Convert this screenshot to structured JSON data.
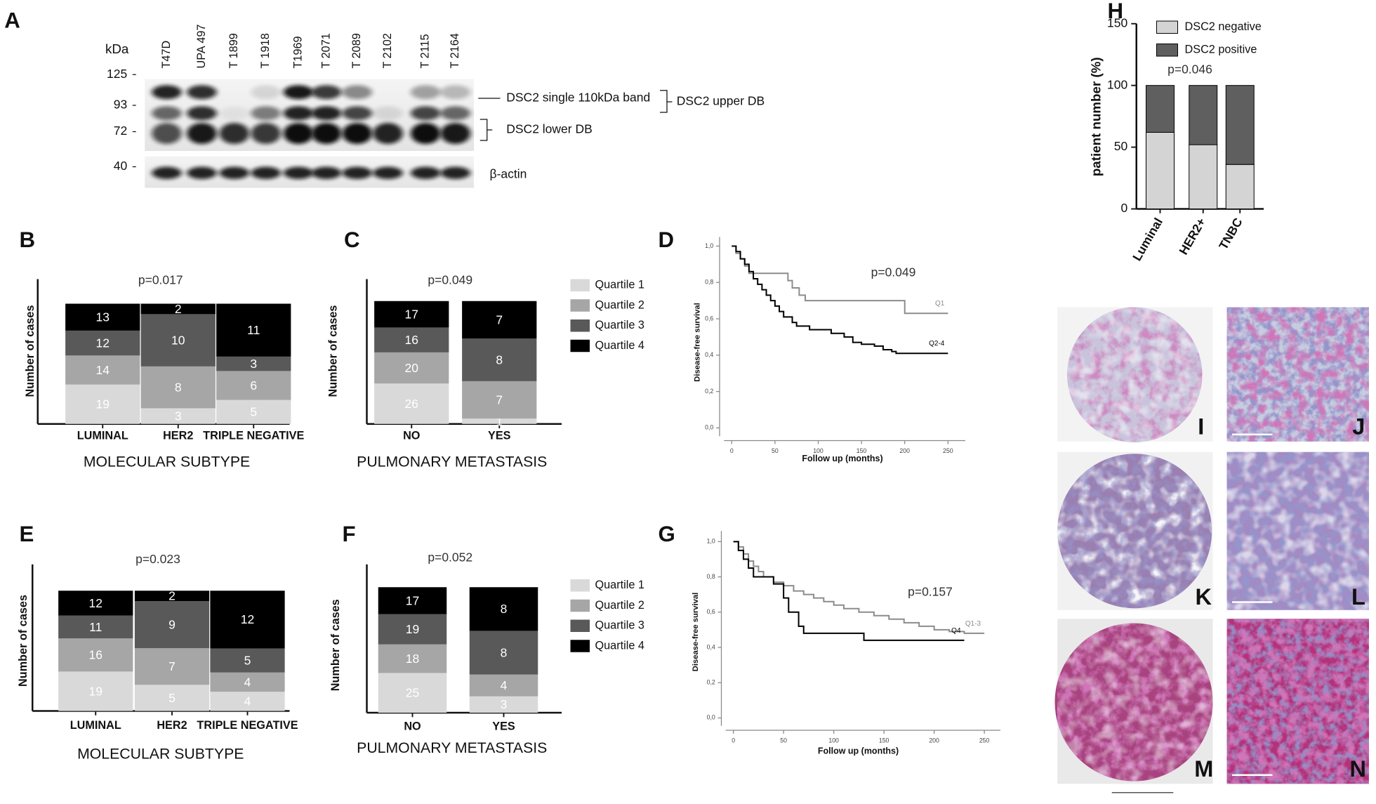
{
  "blot": {
    "panel": "A",
    "unit": "kDa",
    "markers": [
      125,
      93,
      72,
      40
    ],
    "lanes": [
      "T47D",
      "UPA 497",
      "T 1899",
      "T 1918",
      "T1969",
      "T 2071",
      "T 2089",
      "T 2102",
      "T 2115",
      "T 2164"
    ],
    "annotations": [
      "DSC2 single 110kDa band",
      "DSC2 upper DB",
      "DSC2 lower DB",
      "β-actin"
    ]
  },
  "chart_data": [
    {
      "panel": "B",
      "type": "bar",
      "stacking": "percent",
      "data_labels": true,
      "title": "p=0.017",
      "x_label": "MOLECULAR SUBTYPE",
      "y_label": "Number of cases",
      "categories": [
        "LUMINAL",
        "HER2",
        "TRIPLE NEGATIVE"
      ],
      "series": [
        {
          "color": "#d9d9d9",
          "values": [
            19,
            3,
            5
          ]
        },
        {
          "color": "#a6a6a6",
          "values": [
            14,
            8,
            6
          ]
        },
        {
          "color": "#595959",
          "values": [
            12,
            10,
            3
          ]
        },
        {
          "color": "#000000",
          "values": [
            13,
            2,
            11
          ]
        }
      ]
    },
    {
      "panel": "C",
      "type": "bar",
      "stacking": "percent",
      "data_labels": true,
      "title": "p=0.049",
      "x_label": "PULMONARY METASTASIS",
      "y_label": "Number of cases",
      "legend": "right",
      "categories": [
        "NO",
        "YES"
      ],
      "series": [
        {
          "name": "Quartile 1",
          "color": "#d9d9d9",
          "values": [
            26,
            1
          ]
        },
        {
          "name": "Quartile 2",
          "color": "#a6a6a6",
          "values": [
            20,
            7
          ]
        },
        {
          "name": "Quartile 3",
          "color": "#595959",
          "values": [
            16,
            8
          ]
        },
        {
          "name": "Quartile 4",
          "color": "#000000",
          "values": [
            17,
            7
          ]
        }
      ]
    },
    {
      "panel": "D",
      "type": "line",
      "drawstyle": "steps-post",
      "title": "p=0.049",
      "x_label": "Follow up (months)",
      "y_label": "Disease-free survival",
      "xlim": [
        -14,
        270
      ],
      "xticks": [
        0,
        50,
        100,
        150,
        200,
        250
      ],
      "ylim": [
        -0.07,
        1.05
      ],
      "yticks": [
        {
          "value": 0,
          "label": "0,0"
        },
        {
          "value": 0.2,
          "label": "0,2"
        },
        {
          "value": 0.4,
          "label": "0,4"
        },
        {
          "value": 0.6,
          "label": "0,6"
        },
        {
          "value": 0.8,
          "label": "0,8"
        },
        {
          "value": 1,
          "label": "1,0"
        }
      ],
      "series": [
        {
          "name": "Q1",
          "color": "#8c8c8c",
          "x": [
            0,
            5,
            10,
            15,
            20,
            65,
            70,
            78,
            85,
            200,
            250
          ],
          "values": [
            1.0,
            0.96,
            0.93,
            0.89,
            0.85,
            0.81,
            0.77,
            0.73,
            0.7,
            0.63,
            0.63
          ]
        },
        {
          "name": "Q2-4",
          "color": "#000000",
          "x": [
            0,
            5,
            10,
            15,
            20,
            25,
            30,
            35,
            40,
            45,
            50,
            55,
            60,
            70,
            75,
            90,
            115,
            130,
            140,
            150,
            165,
            175,
            185,
            190,
            250
          ],
          "values": [
            1.0,
            0.97,
            0.93,
            0.9,
            0.86,
            0.82,
            0.79,
            0.76,
            0.73,
            0.7,
            0.67,
            0.64,
            0.61,
            0.58,
            0.56,
            0.54,
            0.52,
            0.5,
            0.47,
            0.46,
            0.45,
            0.43,
            0.42,
            0.41,
            0.41
          ]
        }
      ]
    },
    {
      "panel": "E",
      "type": "bar",
      "stacking": "percent",
      "data_labels": true,
      "title": "p=0.023",
      "x_label": "MOLECULAR SUBTYPE",
      "y_label": "Number of cases",
      "categories": [
        "LUMINAL",
        "HER2",
        "TRIPLE NEGATIVE"
      ],
      "series": [
        {
          "color": "#d9d9d9",
          "values": [
            19,
            5,
            4
          ]
        },
        {
          "color": "#a6a6a6",
          "values": [
            16,
            7,
            4
          ]
        },
        {
          "color": "#595959",
          "values": [
            11,
            9,
            5
          ]
        },
        {
          "color": "#000000",
          "values": [
            12,
            2,
            12
          ]
        }
      ]
    },
    {
      "panel": "F",
      "type": "bar",
      "stacking": "percent",
      "data_labels": true,
      "title": "p=0.052",
      "x_label": "PULMONARY METASTASIS",
      "y_label": "Number of cases",
      "legend": "right",
      "categories": [
        "NO",
        "YES"
      ],
      "series": [
        {
          "name": "Quartile 1",
          "color": "#d9d9d9",
          "values": [
            25,
            3
          ]
        },
        {
          "name": "Quartile 2",
          "color": "#a6a6a6",
          "values": [
            18,
            4
          ]
        },
        {
          "name": "Quartile 3",
          "color": "#595959",
          "values": [
            19,
            8
          ]
        },
        {
          "name": "Quartile 4",
          "color": "#000000",
          "values": [
            17,
            8
          ]
        }
      ]
    },
    {
      "panel": "G",
      "type": "line",
      "drawstyle": "steps-post",
      "title": "p=0.157",
      "x_label": "Follow up (months)",
      "y_label": "Disease-free survival",
      "xlim": [
        -12,
        266
      ],
      "xticks": [
        0,
        50,
        100,
        150,
        200,
        250
      ],
      "ylim": [
        -0.07,
        1.06
      ],
      "yticks": [
        {
          "value": 0,
          "label": "0,0"
        },
        {
          "value": 0.2,
          "label": "0,2"
        },
        {
          "value": 0.4,
          "label": "0,4"
        },
        {
          "value": 0.6,
          "label": "0,6"
        },
        {
          "value": 0.8,
          "label": "0,8"
        },
        {
          "value": 1,
          "label": "1,0"
        }
      ],
      "series": [
        {
          "name": "Q1-3",
          "color": "#8c8c8c",
          "x": [
            0,
            5,
            10,
            15,
            20,
            25,
            30,
            40,
            50,
            60,
            70,
            80,
            90,
            100,
            110,
            125,
            140,
            155,
            170,
            185,
            200,
            215,
            230,
            250
          ],
          "values": [
            1.0,
            0.97,
            0.93,
            0.89,
            0.86,
            0.83,
            0.8,
            0.77,
            0.75,
            0.72,
            0.7,
            0.68,
            0.66,
            0.64,
            0.62,
            0.6,
            0.58,
            0.56,
            0.54,
            0.52,
            0.5,
            0.49,
            0.48,
            0.48
          ]
        },
        {
          "name": "Q4",
          "color": "#000000",
          "x": [
            0,
            5,
            10,
            15,
            20,
            40,
            50,
            55,
            65,
            70,
            130,
            230
          ],
          "values": [
            1.0,
            0.95,
            0.9,
            0.85,
            0.8,
            0.76,
            0.68,
            0.6,
            0.52,
            0.48,
            0.44,
            0.44
          ]
        }
      ]
    },
    {
      "panel": "H",
      "type": "bar",
      "stacking": "normal",
      "annotation": "p=0.046",
      "y_label": "patient number (%)",
      "legend": "upper left",
      "edgecolor": "#000000",
      "xtick_rotation": -60,
      "ylim": [
        0,
        150
      ],
      "yticks": [
        0,
        50,
        100,
        150
      ],
      "categories": [
        "Luminal",
        "HER2+",
        "TNBC"
      ],
      "series": [
        {
          "name": "DSC2 negative",
          "color": "#d4d4d4",
          "values": [
            62,
            52,
            36
          ]
        },
        {
          "name": "DSC2 positive",
          "color": "#5f5f5f",
          "values": [
            38,
            48,
            64
          ]
        }
      ]
    }
  ],
  "images": {
    "labels": [
      "I",
      "J",
      "K",
      "L",
      "M",
      "N"
    ]
  }
}
